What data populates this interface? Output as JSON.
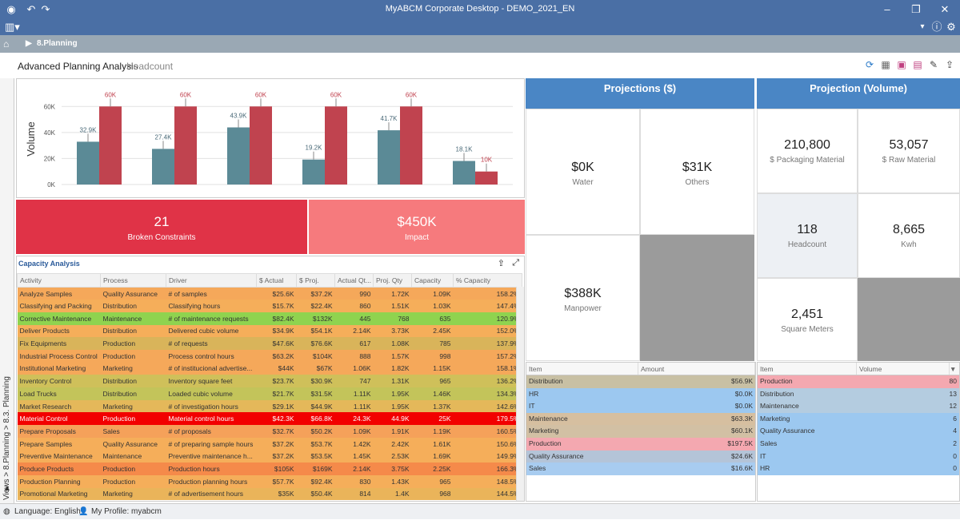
{
  "window": {
    "title": "MyABCM Corporate Desktop - DEMO_2021_EN"
  },
  "nav": {
    "breadcrumb": "8.Planning"
  },
  "page": {
    "title": "Advanced Planning Analysis",
    "subtitle": "Headcount"
  },
  "sidebar": {
    "path": "Views > 8.Planning > 8.3. Planning"
  },
  "chart_data": {
    "type": "bar",
    "categories": [
      "Analyze Samples",
      "Classifying and Packing",
      "Corrective Maintenance",
      "Deliver Products",
      "Fix Equipments",
      "Industrial Process Control"
    ],
    "ylabel": "Volume",
    "ylim": [
      0,
      70
    ],
    "yticks": [
      "0K",
      "20K",
      "40K",
      "60K"
    ],
    "series": [
      {
        "values": [
          32.9,
          27.4,
          43.9,
          19.2,
          41.7,
          18.1
        ],
        "labels": [
          "32.9K",
          "27.4K",
          "43.9K",
          "19.2K",
          "41.7K",
          "18.1K"
        ],
        "color": "#5b8a96"
      },
      {
        "values": [
          60,
          60,
          60,
          60,
          60,
          10
        ],
        "labels": [
          "60K",
          "60K",
          "60K",
          "60K",
          "60K",
          "10K"
        ],
        "color": "#c0434f"
      }
    ]
  },
  "kpis": {
    "broken_value": "21",
    "broken_label": "Broken Constraints",
    "impact_value": "$450K",
    "impact_label": "Impact"
  },
  "capacity": {
    "title": "Capacity Analysis",
    "columns": [
      "Activity",
      "Process",
      "Driver",
      "$ Actual",
      "$ Proj.",
      "Actual Qt...",
      "Proj. Qty",
      "Capacity",
      "% Capacity"
    ],
    "rows": [
      [
        "Analyze Samples",
        "Quality Assurance",
        "# of samples",
        "$25.6K",
        "$37.2K",
        "990",
        "1.72K",
        "1.09K",
        "158.2%",
        "#f5a85a"
      ],
      [
        "Classifying and Packing",
        "Distribution",
        "Classifying hours",
        "$15.7K",
        "$22.4K",
        "860",
        "1.51K",
        "1.03K",
        "147.4%",
        "#f5ae5a"
      ],
      [
        "Corrective Maintenance",
        "Maintenance",
        "# of maintenance requests",
        "$82.4K",
        "$132K",
        "445",
        "768",
        "635",
        "120.9%",
        "#8fd34f"
      ],
      [
        "Deliver Products",
        "Distribution",
        "Delivered cubic volume",
        "$34.9K",
        "$54.1K",
        "2.14K",
        "3.73K",
        "2.45K",
        "152.0%",
        "#f5ae5a"
      ],
      [
        "Fix Equipments",
        "Production",
        "# of requests",
        "$47.6K",
        "$76.6K",
        "617",
        "1.08K",
        "785",
        "137.9%",
        "#d9b45a"
      ],
      [
        "Industrial Process Control",
        "Production",
        "Process control hours",
        "$63.2K",
        "$104K",
        "888",
        "1.57K",
        "998",
        "157.2%",
        "#f5a85a"
      ],
      [
        "Institutional Marketing",
        "Marketing",
        "# of institucional advertise...",
        "$44K",
        "$67K",
        "1.06K",
        "1.82K",
        "1.15K",
        "158.1%",
        "#f5a85a"
      ],
      [
        "Inventory Control",
        "Distribution",
        "Inventory square feet",
        "$23.7K",
        "$30.9K",
        "747",
        "1.31K",
        "965",
        "136.2%",
        "#cfc05a"
      ],
      [
        "Load Trucks",
        "Distribution",
        "Loaded cubic volume",
        "$21.7K",
        "$31.5K",
        "1.11K",
        "1.95K",
        "1.46K",
        "134.3%",
        "#c3c45a"
      ],
      [
        "Market Research",
        "Marketing",
        "# of investigation hours",
        "$29.1K",
        "$44.9K",
        "1.11K",
        "1.95K",
        "1.37K",
        "142.6%",
        "#e4b85a"
      ],
      [
        "Material Control",
        "Production",
        "Material control hours",
        "$42.3K",
        "$66.8K",
        "24.3K",
        "44.9K",
        "25K",
        "179.5%",
        "#f20000"
      ],
      [
        "Prepare Proposals",
        "Sales",
        "# of proposals",
        "$32.7K",
        "$50.2K",
        "1.09K",
        "1.91K",
        "1.19K",
        "160.5%",
        "#f5a15a"
      ],
      [
        "Prepare Samples",
        "Quality Assurance",
        "# of preparing sample hours",
        "$37.2K",
        "$53.7K",
        "1.42K",
        "2.42K",
        "1.61K",
        "150.6%",
        "#f5ae5a"
      ],
      [
        "Preventive Maintenance",
        "Maintenance",
        "Preventive maintenance h...",
        "$37.2K",
        "$53.5K",
        "1.45K",
        "2.53K",
        "1.69K",
        "149.9%",
        "#f5ae5a"
      ],
      [
        "Produce Products",
        "Production",
        "Production hours",
        "$105K",
        "$169K",
        "2.14K",
        "3.75K",
        "2.25K",
        "166.3%",
        "#f58a4a"
      ],
      [
        "Production Planning",
        "Production",
        "Production planning hours",
        "$57.7K",
        "$92.4K",
        "830",
        "1.43K",
        "965",
        "148.5%",
        "#f5ae5a"
      ],
      [
        "Promotional Marketing",
        "Marketing",
        "# of advertisement hours",
        "$35K",
        "$50.4K",
        "814",
        "1.4K",
        "968",
        "144.5%",
        "#eab45a"
      ]
    ]
  },
  "proj_money": {
    "title": "Projections ($)",
    "water_value": "$0K",
    "water_label": "Water",
    "others_value": "$31K",
    "others_label": "Others",
    "manpower_value": "$388K",
    "manpower_label": "Manpower",
    "table_cols": [
      "Item",
      "Amount"
    ],
    "rows": [
      [
        "Distribution",
        "$56.9K",
        "#c8c0a4"
      ],
      [
        "HR",
        "$0.0K",
        "#9cc8f0"
      ],
      [
        "IT",
        "$0.0K",
        "#9cc8f0"
      ],
      [
        "Maintenance",
        "$63.3K",
        "#d6bfa0"
      ],
      [
        "Marketing",
        "$60.1K",
        "#d2c0a4"
      ],
      [
        "Production",
        "$197.5K",
        "#f4a8b0"
      ],
      [
        "Quality Assurance",
        "$24.6K",
        "#b4c4d8"
      ],
      [
        "Sales",
        "$16.6K",
        "#a8ccf0"
      ]
    ]
  },
  "proj_volume": {
    "title": "Projection (Volume)",
    "pack_value": "210,800",
    "pack_label": "$ Packaging Material",
    "raw_value": "53,057",
    "raw_label": "$ Raw Material",
    "head_value": "118",
    "head_label": "Headcount",
    "kwh_value": "8,665",
    "kwh_label": "Kwh",
    "sq_value": "2,451",
    "sq_label": "Square Meters",
    "table_cols": [
      "Item",
      "Volume"
    ],
    "rows": [
      [
        "Production",
        "80",
        "#f4a8b0"
      ],
      [
        "Distribution",
        "13",
        "#b4cce0"
      ],
      [
        "Maintenance",
        "12",
        "#b4cce0"
      ],
      [
        "Marketing",
        "6",
        "#9cc8f0"
      ],
      [
        "Quality Assurance",
        "4",
        "#9cc8f0"
      ],
      [
        "Sales",
        "2",
        "#9cc8f0"
      ],
      [
        "IT",
        "0",
        "#9cc8f0"
      ],
      [
        "HR",
        "0",
        "#9cc8f0"
      ]
    ]
  },
  "status": {
    "language": "Language: English",
    "profile": "My Profile: myabcm"
  }
}
